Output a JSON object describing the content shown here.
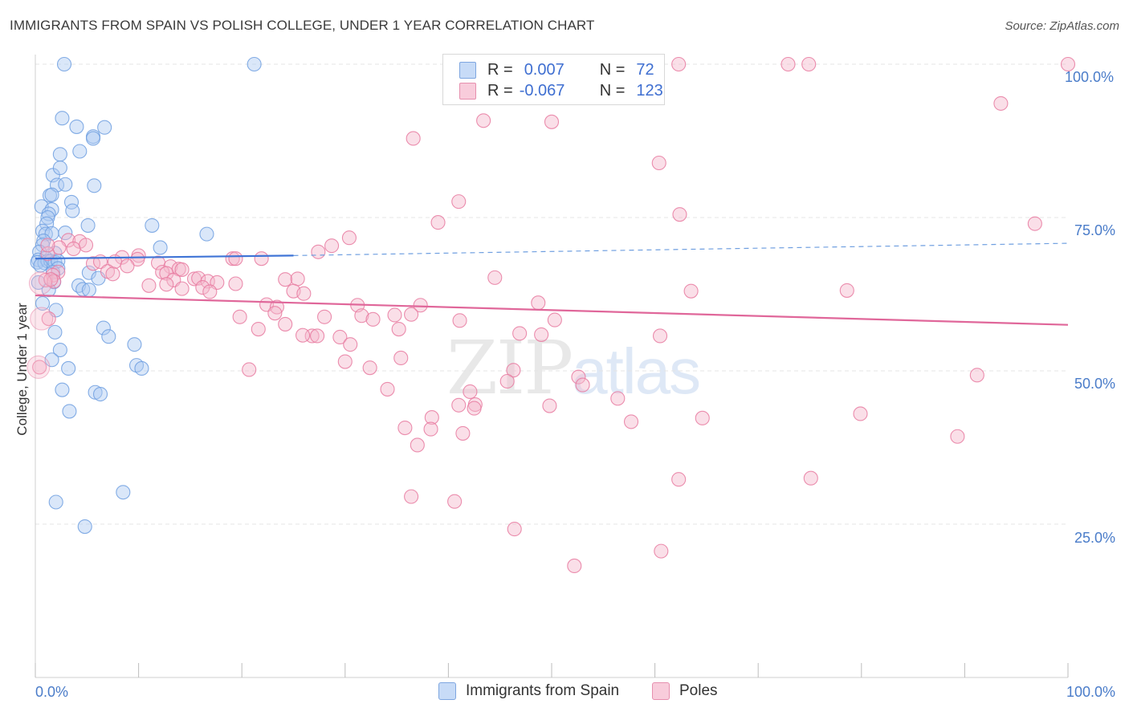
{
  "header": {
    "title": "IMMIGRANTS FROM SPAIN VS POLISH COLLEGE, UNDER 1 YEAR CORRELATION CHART",
    "source": "Source: ZipAtlas.com"
  },
  "watermark": {
    "zip": "ZIP",
    "atlas": "atlas"
  },
  "legend_top": {
    "rows": [
      {
        "r_label": "R =",
        "r_value": "0.007",
        "n_label": "N =",
        "n_value": "72",
        "color": "#aec9f2"
      },
      {
        "r_label": "R =",
        "r_value": "-0.067",
        "n_label": "N =",
        "n_value": "123",
        "color": "#f5b8cc"
      }
    ]
  },
  "legend_bottom": {
    "items": [
      {
        "label": "Immigrants from Spain",
        "color": "#aec9f2"
      },
      {
        "label": "Poles",
        "color": "#f5b8cc"
      }
    ]
  },
  "chart_data": {
    "type": "scatter",
    "title": "IMMIGRANTS FROM SPAIN VS POLISH COLLEGE, UNDER 1 YEAR CORRELATION CHART",
    "xlabel": "",
    "ylabel": "College, Under 1 year",
    "xlim": [
      0,
      100
    ],
    "ylim": [
      0,
      100
    ],
    "x_tick_labels": [
      "0.0%",
      "100.0%"
    ],
    "y_tick_labels": [
      "25.0%",
      "50.0%",
      "75.0%",
      "100.0%"
    ],
    "y_ticks": [
      25,
      50,
      75,
      100
    ],
    "grid": true,
    "series": [
      {
        "name": "Immigrants from Spain",
        "color": "#6f9fe0",
        "fill": "#aec9f2",
        "trend": {
          "x": [
            0,
            25
          ],
          "y": [
            68.3,
            68.8
          ],
          "dashed_to": 100,
          "dashed_y_end": 70.8
        },
        "points": [
          [
            2.8,
            100
          ],
          [
            21.2,
            100
          ],
          [
            2.6,
            91.2
          ],
          [
            4,
            89.8
          ],
          [
            5.6,
            88.2
          ],
          [
            6.7,
            89.7
          ],
          [
            5.6,
            87.9
          ],
          [
            2.4,
            85.3
          ],
          [
            4.3,
            85.8
          ],
          [
            1.7,
            81.9
          ],
          [
            2.4,
            83.1
          ],
          [
            2.1,
            80.3
          ],
          [
            2.9,
            80.4
          ],
          [
            5.7,
            80.2
          ],
          [
            1.4,
            78.6
          ],
          [
            1.6,
            78.7
          ],
          [
            3.5,
            77.5
          ],
          [
            0.6,
            76.8
          ],
          [
            1.6,
            76.3
          ],
          [
            3.6,
            76.1
          ],
          [
            1.3,
            75.6
          ],
          [
            1.2,
            75.0
          ],
          [
            1.1,
            74.0
          ],
          [
            5.1,
            73.7
          ],
          [
            11.3,
            73.7
          ],
          [
            16.6,
            72.3
          ],
          [
            0.7,
            72.8
          ],
          [
            1.0,
            72.3
          ],
          [
            1.6,
            72.4
          ],
          [
            2.9,
            72.5
          ],
          [
            0.8,
            71.2
          ],
          [
            0.7,
            70.5
          ],
          [
            12.1,
            70.1
          ],
          [
            0.4,
            69.4
          ],
          [
            1.9,
            69.2
          ],
          [
            1.0,
            68.4
          ],
          [
            0.3,
            68.1
          ],
          [
            0.2,
            67.7
          ],
          [
            0.9,
            67.6
          ],
          [
            1.2,
            67.9
          ],
          [
            1.5,
            67.9
          ],
          [
            1.9,
            67.7
          ],
          [
            2.2,
            67.9
          ],
          [
            0.5,
            67.2
          ],
          [
            2.2,
            66.7
          ],
          [
            1.7,
            66.1
          ],
          [
            5.2,
            66.0
          ],
          [
            6.1,
            65.1
          ],
          [
            1.8,
            64.5
          ],
          [
            1.3,
            63.2
          ],
          [
            4.2,
            63.9
          ],
          [
            4.6,
            63.3
          ],
          [
            5.2,
            63.2
          ],
          [
            0.7,
            61.0
          ],
          [
            2.0,
            59.9
          ],
          [
            6.6,
            57.0
          ],
          [
            1.9,
            56.3
          ],
          [
            7.1,
            55.6
          ],
          [
            2.4,
            53.4
          ],
          [
            9.6,
            54.3
          ],
          [
            1.6,
            51.8
          ],
          [
            9.8,
            50.9
          ],
          [
            3.2,
            50.4
          ],
          [
            10.3,
            50.4
          ],
          [
            2.6,
            46.9
          ],
          [
            5.8,
            46.5
          ],
          [
            6.3,
            46.2
          ],
          [
            3.3,
            43.4
          ],
          [
            8.5,
            30.2
          ],
          [
            2.0,
            28.6
          ],
          [
            4.8,
            24.6
          ],
          [
            0.3,
            64.4
          ]
        ]
      },
      {
        "name": "Poles",
        "color": "#e87aa0",
        "fill": "#f5b8cc",
        "trend": {
          "x": [
            0,
            100
          ],
          "y": [
            62.3,
            57.5
          ]
        },
        "points": [
          [
            62.3,
            100
          ],
          [
            72.9,
            100
          ],
          [
            74.9,
            100
          ],
          [
            100,
            100
          ],
          [
            93.5,
            93.6
          ],
          [
            43.4,
            90.8
          ],
          [
            50,
            90.6
          ],
          [
            36.6,
            87.9
          ],
          [
            60.4,
            83.9
          ],
          [
            96.8,
            74.0
          ],
          [
            41.0,
            77.6
          ],
          [
            62.4,
            75.5
          ],
          [
            39.0,
            74.2
          ],
          [
            30.4,
            71.7
          ],
          [
            28.7,
            70.4
          ],
          [
            27.4,
            69.4
          ],
          [
            3.2,
            71.3
          ],
          [
            4.3,
            71.1
          ],
          [
            4.9,
            70.5
          ],
          [
            3.7,
            69.9
          ],
          [
            2.3,
            70.1
          ],
          [
            1.2,
            69.1
          ],
          [
            10.0,
            68.8
          ],
          [
            8.4,
            68.5
          ],
          [
            9.9,
            68.2
          ],
          [
            19.1,
            68.3
          ],
          [
            19.4,
            68.3
          ],
          [
            21.9,
            68.3
          ],
          [
            5.6,
            67.5
          ],
          [
            6.3,
            67.8
          ],
          [
            7.7,
            67.8
          ],
          [
            8.9,
            67.1
          ],
          [
            11.9,
            67.6
          ],
          [
            13.1,
            67.0
          ],
          [
            13.9,
            66.6
          ],
          [
            14.2,
            66.5
          ],
          [
            12.3,
            66.1
          ],
          [
            12.7,
            65.9
          ],
          [
            7.0,
            66.2
          ],
          [
            7.5,
            65.8
          ],
          [
            2.2,
            66.1
          ],
          [
            1.7,
            65.6
          ],
          [
            1.0,
            64.8
          ],
          [
            1.8,
            64.6
          ],
          [
            15.4,
            65.0
          ],
          [
            15.8,
            65.1
          ],
          [
            13.4,
            64.8
          ],
          [
            12.7,
            64.1
          ],
          [
            14.2,
            63.4
          ],
          [
            16.7,
            64.6
          ],
          [
            17.6,
            64.4
          ],
          [
            19.4,
            64.2
          ],
          [
            24.2,
            64.9
          ],
          [
            25.4,
            65.0
          ],
          [
            11.0,
            63.9
          ],
          [
            16.2,
            63.6
          ],
          [
            16.9,
            62.9
          ],
          [
            25.0,
            63.0
          ],
          [
            26.0,
            62.6
          ],
          [
            44.5,
            65.2
          ],
          [
            63.5,
            63.0
          ],
          [
            78.6,
            63.1
          ],
          [
            22.4,
            60.8
          ],
          [
            23.4,
            60.4
          ],
          [
            31.2,
            60.7
          ],
          [
            37.3,
            60.7
          ],
          [
            48.7,
            61.1
          ],
          [
            23.2,
            59.4
          ],
          [
            19.8,
            58.8
          ],
          [
            28.0,
            58.8
          ],
          [
            26.8,
            55.7
          ],
          [
            31.6,
            59.0
          ],
          [
            32.7,
            58.4
          ],
          [
            34.8,
            59.1
          ],
          [
            36.4,
            59.2
          ],
          [
            41.1,
            58.2
          ],
          [
            50.3,
            58.3
          ],
          [
            21.6,
            56.8
          ],
          [
            24.2,
            57.6
          ],
          [
            35.2,
            56.8
          ],
          [
            25.9,
            55.8
          ],
          [
            27.3,
            55.7
          ],
          [
            29.5,
            55.5
          ],
          [
            35.4,
            52.1
          ],
          [
            30.5,
            54.3
          ],
          [
            46.9,
            56.1
          ],
          [
            49.0,
            55.9
          ],
          [
            60.5,
            55.7
          ],
          [
            30.0,
            51.5
          ],
          [
            32.4,
            50.5
          ],
          [
            20.7,
            50.2
          ],
          [
            46.3,
            50.1
          ],
          [
            52.6,
            49.0
          ],
          [
            53.0,
            47.7
          ],
          [
            34.1,
            47.0
          ],
          [
            42.1,
            46.6
          ],
          [
            45.7,
            48.3
          ],
          [
            56.4,
            45.5
          ],
          [
            42.6,
            44.5
          ],
          [
            41.0,
            44.4
          ],
          [
            49.8,
            44.3
          ],
          [
            79.9,
            43.0
          ],
          [
            64.6,
            42.3
          ],
          [
            57.7,
            41.7
          ],
          [
            38.4,
            42.4
          ],
          [
            35.8,
            40.7
          ],
          [
            38.3,
            40.5
          ],
          [
            41.4,
            39.8
          ],
          [
            42.5,
            43.9
          ],
          [
            89.3,
            39.3
          ],
          [
            37.0,
            37.9
          ],
          [
            91.2,
            49.3
          ],
          [
            75.1,
            32.5
          ],
          [
            62.3,
            32.3
          ],
          [
            36.4,
            29.5
          ],
          [
            40.6,
            28.7
          ],
          [
            46.4,
            24.2
          ],
          [
            60.6,
            20.6
          ],
          [
            52.2,
            18.2
          ],
          [
            1.5,
            64.9
          ],
          [
            1.2,
            70.5
          ],
          [
            1.3,
            58.5
          ],
          [
            0.4,
            50.6
          ]
        ]
      }
    ]
  }
}
